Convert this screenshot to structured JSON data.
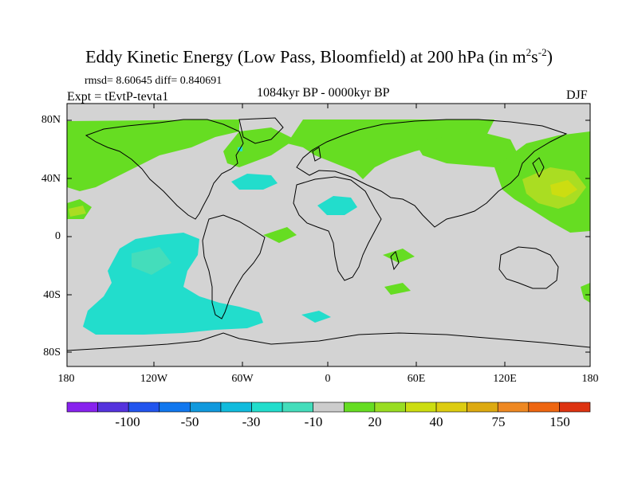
{
  "title": "Eddy Kinetic Energy (Low Pass, Bloomfield) at 200 hPa (in m",
  "title_sup1": "2",
  "title_mid": "s",
  "title_sup2": "-2",
  "title_end": ")",
  "stats": "rmsd= 8.60645 diff= 0.840691",
  "experiment": "Expt = tEvtP-tevta1",
  "period": "1084kyr BP - 0000kyr BP",
  "season": "DJF",
  "colors": {
    "land_mask": "#d3d3d3",
    "green": "#66dd22",
    "yellow_green": "#aadd22",
    "cyan": "#22ddcc",
    "light_cyan": "#33ddcc"
  },
  "chart_data": {
    "type": "heatmap",
    "title": "Eddy Kinetic Energy (Low Pass, Bloomfield) at 200 hPa (in m2s-2)",
    "projection": "cylindrical equidistant",
    "lon_range": [
      -180,
      180
    ],
    "lat_range": [
      -90,
      90
    ],
    "x_ticks": [
      "180",
      "120W",
      "60W",
      "0",
      "60E",
      "120E",
      "180"
    ],
    "y_ticks": [
      "80N",
      "40N",
      "0",
      "40S",
      "80S"
    ],
    "y_tick_values": [
      80,
      40,
      0,
      -40,
      -80
    ],
    "x_tick_values": [
      -180,
      -120,
      -60,
      0,
      60,
      120,
      180
    ],
    "colorbar": {
      "labels": [
        "-100",
        "-50",
        "-30",
        "-10",
        "20",
        "40",
        "75",
        "150"
      ],
      "colors": [
        "#8822ee",
        "#5533dd",
        "#2255ee",
        "#1177ee",
        "#1199dd",
        "#11bbdd",
        "#22ddcc",
        "#44ddbb",
        "#cccccc",
        "#66dd22",
        "#99dd22",
        "#ccdd11",
        "#ddcc11",
        "#ddaa11",
        "#ee8822",
        "#ee6611",
        "#dd3311"
      ]
    },
    "regions": [
      {
        "name": "north-pacific-positive",
        "sign": "positive",
        "level": "20"
      },
      {
        "name": "north-atlantic-positive",
        "sign": "positive",
        "level": "20"
      },
      {
        "name": "eurasia-positive",
        "sign": "positive",
        "level": "20"
      },
      {
        "name": "west-pacific-positive",
        "sign": "positive",
        "level": "40"
      },
      {
        "name": "south-pacific-negative",
        "sign": "negative",
        "level": "-10"
      },
      {
        "name": "sahara-negative",
        "sign": "negative",
        "level": "-10"
      },
      {
        "name": "mid-atlantic-negative",
        "sign": "negative",
        "level": "-10"
      }
    ]
  }
}
